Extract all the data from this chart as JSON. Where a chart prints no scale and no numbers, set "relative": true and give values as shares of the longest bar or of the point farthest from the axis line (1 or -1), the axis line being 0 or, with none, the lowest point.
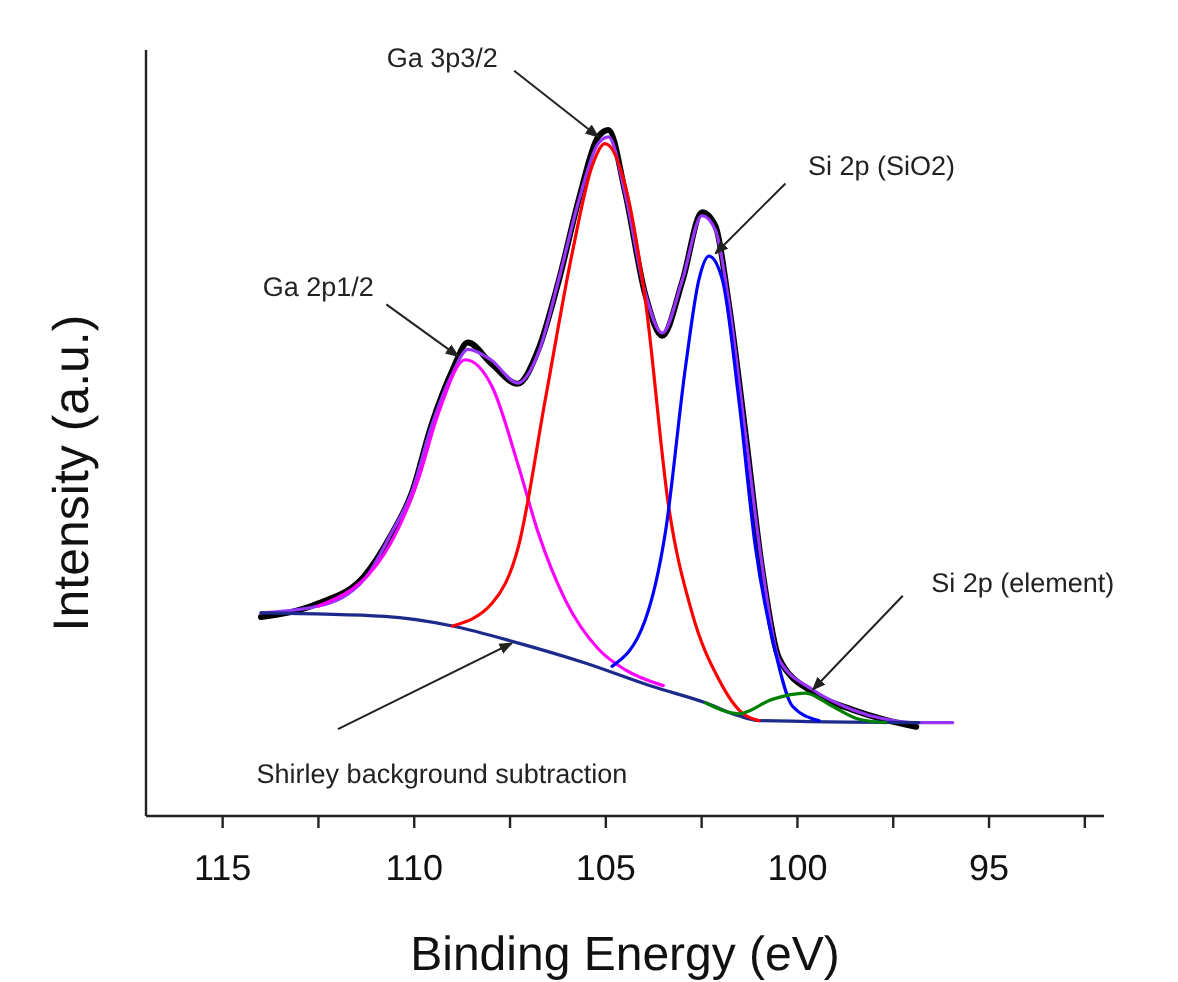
{
  "chart_data": {
    "type": "line",
    "relative": true,
    "xlabel": "Binding Energy (eV)",
    "ylabel": "Intensity (a.u.)",
    "xlim": [
      117,
      92
    ],
    "xticks": [
      115,
      {
        "value": 112.5,
        "label": null
      },
      110,
      {
        "value": 107.5,
        "label": null
      },
      105,
      {
        "value": 102.5,
        "label": null
      },
      100,
      {
        "value": 97.5,
        "label": null
      },
      95,
      {
        "value": 92.5,
        "label": null
      }
    ],
    "grid": false,
    "marker": "none",
    "line_style": "solid",
    "series": [
      {
        "color": "#000000",
        "x": [
          114.0,
          112.5,
          111.3,
          110.6,
          110.07,
          109.55,
          109.0,
          108.6,
          108.0,
          107.3,
          106.76,
          106.23,
          105.7,
          105.2,
          104.93,
          104.5,
          103.97,
          103.53,
          103.0,
          102.49,
          102.14,
          101.8,
          101.36,
          100.92,
          100.48,
          99.6,
          98.57,
          97.7,
          96.9
        ],
        "values": [
          0.29,
          0.31,
          0.35,
          0.41,
          0.47,
          0.57,
          0.65,
          0.69,
          0.66,
          0.63,
          0.68,
          0.78,
          0.9,
          0.99,
          1.0,
          0.91,
          0.76,
          0.7,
          0.78,
          0.88,
          0.86,
          0.75,
          0.56,
          0.36,
          0.23,
          0.18,
          0.155,
          0.14,
          0.13
        ]
      },
      {
        "color": "#9933ff",
        "x": [
          114.0,
          112.5,
          111.3,
          110.6,
          110.07,
          109.55,
          109.0,
          108.6,
          108.0,
          107.3,
          106.76,
          106.23,
          105.7,
          105.2,
          104.93,
          104.5,
          103.97,
          103.53,
          103.0,
          102.49,
          102.14,
          101.8,
          101.36,
          100.92,
          100.48,
          99.6,
          98.57,
          97.7,
          96.83,
          95.95
        ],
        "values": [
          0.296,
          0.306,
          0.345,
          0.412,
          0.471,
          0.568,
          0.645,
          0.68,
          0.665,
          0.631,
          0.675,
          0.782,
          0.898,
          0.98,
          0.99,
          0.908,
          0.762,
          0.704,
          0.782,
          0.875,
          0.854,
          0.752,
          0.558,
          0.364,
          0.228,
          0.184,
          0.155,
          0.141,
          0.136,
          0.136
        ]
      },
      {
        "color": "#1c2a8c",
        "x": [
          114.0,
          110.77,
          109.0,
          107.28,
          105.54,
          103.8,
          102.4,
          101.53,
          101.0,
          96.83
        ],
        "values": [
          0.296,
          0.291,
          0.277,
          0.252,
          0.223,
          0.189,
          0.165,
          0.146,
          0.139,
          0.136
        ]
      },
      {
        "color": "#ff00ff",
        "x": [
          112.5,
          110.77,
          109.9,
          109.37,
          108.67,
          107.97,
          107.28,
          106.76,
          106.06,
          105.19,
          104.49,
          103.5
        ],
        "values": [
          0.306,
          0.383,
          0.49,
          0.587,
          0.665,
          0.626,
          0.51,
          0.412,
          0.315,
          0.243,
          0.213,
          0.19
        ]
      },
      {
        "color": "#ff0000",
        "x": [
          109.0,
          107.97,
          107.28,
          106.58,
          105.88,
          105.36,
          105.02,
          104.49,
          103.97,
          103.36,
          102.75,
          102.05,
          101.44,
          101.0
        ],
        "values": [
          0.277,
          0.31,
          0.393,
          0.607,
          0.82,
          0.947,
          0.98,
          0.918,
          0.752,
          0.451,
          0.296,
          0.199,
          0.15,
          0.139
        ]
      },
      {
        "color": "#0000ff",
        "x": [
          104.84,
          103.97,
          103.45,
          102.92,
          102.57,
          102.31,
          101.96,
          101.53,
          101.1,
          100.57,
          100.13,
          99.44
        ],
        "values": [
          0.218,
          0.286,
          0.412,
          0.655,
          0.782,
          0.816,
          0.782,
          0.607,
          0.393,
          0.238,
          0.16,
          0.139
        ]
      },
      {
        "color": "#008000",
        "x": [
          102.4,
          101.53,
          100.66,
          99.79,
          99.09,
          98.39,
          97.7
        ],
        "values": [
          0.165,
          0.149,
          0.17,
          0.179,
          0.16,
          0.141,
          0.136
        ]
      }
    ],
    "annotations": [
      {
        "text": "Ga 3p3/2",
        "x": 105.2,
        "y": 0.99
      },
      {
        "text": "Si 2p (SiO2)",
        "x": 102.14,
        "y": 0.82
      },
      {
        "text": "Ga 2p1/2",
        "x": 108.85,
        "y": 0.67
      },
      {
        "text": "Si 2p (element)",
        "x": 99.6,
        "y": 0.184
      },
      {
        "text": "Shirley background subtraction",
        "x": 107.45,
        "y": 0.252
      }
    ]
  }
}
